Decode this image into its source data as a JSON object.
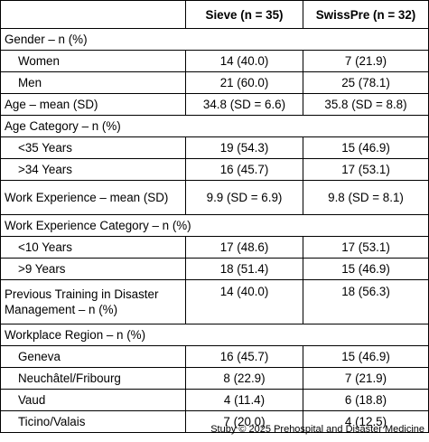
{
  "table": {
    "header": {
      "blank": "",
      "col1": "Sieve (n = 35)",
      "col2": "SwissPre (n = 32)"
    },
    "rows": [
      {
        "label": "Gender – n (%)",
        "v1": "",
        "v2": ""
      },
      {
        "label": "Women",
        "v1": "14 (40.0)",
        "v2": "7 (21.9)"
      },
      {
        "label": "Men",
        "v1": "21 (60.0)",
        "v2": "25 (78.1)"
      },
      {
        "label": "Age – mean (SD)",
        "v1": "34.8 (SD = 6.6)",
        "v2": "35.8 (SD = 8.8)"
      },
      {
        "label": "Age Category – n (%)",
        "v1": "",
        "v2": ""
      },
      {
        "label": "<35 Years",
        "v1": "19 (54.3)",
        "v2": "15 (46.9)"
      },
      {
        "label": ">34 Years",
        "v1": "16 (45.7)",
        "v2": "17 (53.1)"
      },
      {
        "label": "Work Experience – mean (SD)",
        "v1": "9.9 (SD = 6.9)",
        "v2": "9.8 (SD = 8.1)"
      },
      {
        "label": "Work Experience Category – n (%)",
        "v1": "",
        "v2": ""
      },
      {
        "label": "<10 Years",
        "v1": "17 (48.6)",
        "v2": "17 (53.1)"
      },
      {
        "label": ">9 Years",
        "v1": "18 (51.4)",
        "v2": "15 (46.9)"
      },
      {
        "label": "Previous Training in Disaster Management – n (%)",
        "v1": "14 (40.0)",
        "v2": "18 (56.3)"
      },
      {
        "label": "Workplace Region – n (%)",
        "v1": "",
        "v2": ""
      },
      {
        "label": "Geneva",
        "v1": "16 (45.7)",
        "v2": "15 (46.9)"
      },
      {
        "label": "Neuchâtel/Fribourg",
        "v1": "8 (22.9)",
        "v2": "7 (21.9)"
      },
      {
        "label": "Vaud",
        "v1": "4 (11.4)",
        "v2": "6 (18.8)"
      },
      {
        "label": "Ticino/Valais",
        "v1": "7 (20.0)",
        "v2": "4 (12.5)"
      }
    ]
  },
  "credit": "Stuby © 2025 Prehospital and Disaster Medicine"
}
